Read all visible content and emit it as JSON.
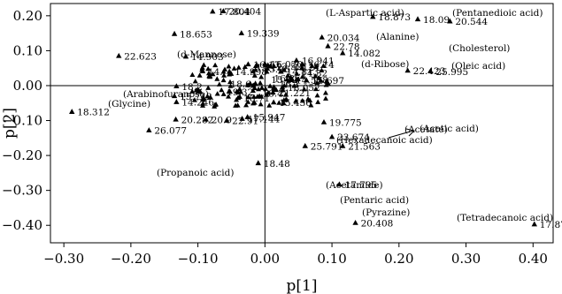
{
  "chart_data": {
    "type": "scatter",
    "xlabel": "p[1]",
    "ylabel": "p[2]",
    "xlim": [
      -0.32,
      0.43
    ],
    "ylim": [
      -0.45,
      0.235
    ],
    "x_ticks": [
      -0.3,
      -0.2,
      -0.1,
      0.0,
      0.1,
      0.2,
      0.3,
      0.4
    ],
    "x_tick_labels": [
      "−0.30",
      "−0.20",
      "−0.10",
      "0.00",
      "0.10",
      "0.20",
      "0.30",
      "0.40"
    ],
    "y_ticks": [
      0.2,
      0.1,
      0.0,
      -0.1,
      -0.2,
      -0.3,
      -0.4
    ],
    "y_tick_labels": [
      "0.20",
      "0.10",
      "0.00",
      "−0.10",
      "−0.20",
      "−0.30",
      "−0.40"
    ],
    "grid": false,
    "reference_lines": {
      "x": 0,
      "y": 0
    },
    "points": [
      {
        "x": -0.288,
        "y": -0.075,
        "label": "18.312"
      },
      {
        "x": -0.218,
        "y": 0.085,
        "label": "22.623"
      },
      {
        "x": -0.173,
        "y": -0.128,
        "label": "26.077"
      },
      {
        "x": -0.133,
        "y": -0.097,
        "label": "20.282"
      },
      {
        "x": -0.135,
        "y": 0.148,
        "label": "18.653"
      },
      {
        "x": -0.135,
        "y": -0.03,
        "label": "15.742"
      },
      {
        "x": -0.132,
        "y": -0.047,
        "label": "14.246"
      },
      {
        "x": -0.132,
        "y": -0.002,
        "label": "18.2"
      },
      {
        "x": -0.118,
        "y": 0.083,
        "label": "14.903"
      },
      {
        "x": -0.093,
        "y": 0.041,
        "label": "14."
      },
      {
        "x": -0.088,
        "y": -0.097,
        "label": "20.9"
      },
      {
        "x": -0.078,
        "y": 0.212,
        "label": "17.804"
      },
      {
        "x": -0.062,
        "y": 0.213,
        "label": "20.404"
      },
      {
        "x": -0.057,
        "y": -0.1,
        "label": "22.91"
      },
      {
        "x": -0.053,
        "y": 0.04,
        "label": "14.998"
      },
      {
        "x": -0.04,
        "y": -0.035,
        "label": "16.71"
      },
      {
        "x": -0.035,
        "y": 0.15,
        "label": "19.339"
      },
      {
        "x": -0.034,
        "y": -0.095,
        "label": "17.144"
      },
      {
        "x": -0.026,
        "y": -0.09,
        "label": "15.947"
      },
      {
        "x": -0.025,
        "y": 0.061,
        "label": "16.17"
      },
      {
        "x": 0.0,
        "y": 0.062,
        "label": "16.020"
      },
      {
        "x": 0.008,
        "y": 0.055,
        "label": "13.521"
      },
      {
        "x": 0.024,
        "y": 0.04,
        "label": "14.813"
      },
      {
        "x": 0.013,
        "y": -0.048,
        "label": "15.436"
      },
      {
        "x": -0.01,
        "y": -0.222,
        "label": "18.48"
      },
      {
        "x": 0.026,
        "y": -0.005,
        "label": "18.052"
      },
      {
        "x": 0.012,
        "y": -0.02,
        "label": "21.221"
      },
      {
        "x": 0.038,
        "y": 0.016,
        "label": "14.558"
      },
      {
        "x": 0.047,
        "y": 0.072,
        "label": "16.941"
      },
      {
        "x": 0.056,
        "y": 0.061,
        "label": "16.14"
      },
      {
        "x": 0.062,
        "y": 0.015,
        "label": "15.697"
      },
      {
        "x": 0.085,
        "y": 0.138,
        "label": "20.034"
      },
      {
        "x": 0.094,
        "y": 0.113,
        "label": "22.78"
      },
      {
        "x": 0.116,
        "y": 0.093,
        "label": "14.082"
      },
      {
        "x": 0.088,
        "y": -0.105,
        "label": "19.775"
      },
      {
        "x": 0.1,
        "y": -0.147,
        "label": "23.674"
      },
      {
        "x": 0.06,
        "y": -0.173,
        "label": "25.791"
      },
      {
        "x": 0.116,
        "y": -0.173,
        "label": "21.563"
      },
      {
        "x": 0.111,
        "y": -0.283,
        "label": "17.795"
      },
      {
        "x": 0.135,
        "y": -0.393,
        "label": "20.408"
      },
      {
        "x": 0.161,
        "y": 0.197,
        "label": "18.873"
      },
      {
        "x": 0.213,
        "y": 0.043,
        "label": "22.423"
      },
      {
        "x": 0.228,
        "y": 0.19,
        "label": "18.09"
      },
      {
        "x": 0.247,
        "y": 0.041,
        "label": "25.995"
      },
      {
        "x": 0.276,
        "y": 0.184,
        "label": "20.544"
      },
      {
        "x": 0.402,
        "y": -0.397,
        "label": "17.87"
      }
    ],
    "cluster_labels": [
      "16.86",
      "18.6",
      "14.32",
      "15.22",
      "16.1",
      "19.32",
      "15.12",
      "14.21",
      "13.96",
      "18.4"
    ],
    "annotations": [
      "(d-Mannose)",
      "(Arabinofuranose)",
      "(Glycine)",
      "(Propanoic acid)",
      "(L-Aspartic acid)",
      "(Pentanedioic acid)",
      "(Alanine)",
      "(Cholesterol)",
      "(d-Ribose)",
      "(Oleic acid)",
      "(Acetate)",
      "(Hexadecanoic acid)",
      "(Acetic acid)",
      "(Acetamide)",
      "(Pentaric acid)",
      "(Pyrazine)",
      "(Tetradecanoic acid)"
    ]
  }
}
